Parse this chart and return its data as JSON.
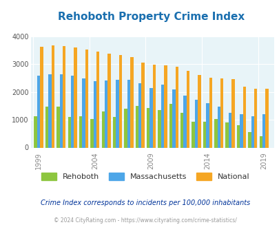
{
  "title": "Rehoboth Property Crime Index",
  "years": [
    1999,
    2000,
    2001,
    2002,
    2003,
    2004,
    2005,
    2006,
    2007,
    2008,
    2009,
    2010,
    2011,
    2012,
    2013,
    2014,
    2015,
    2016,
    2017,
    2018,
    2019
  ],
  "rehoboth": [
    1120,
    1470,
    1460,
    1100,
    1120,
    1020,
    1290,
    1110,
    1390,
    1490,
    1420,
    1360,
    1560,
    1240,
    925,
    940,
    1020,
    900,
    800,
    550,
    420
  ],
  "massachusetts": [
    2580,
    2630,
    2630,
    2590,
    2490,
    2380,
    2420,
    2430,
    2430,
    2320,
    2140,
    2270,
    2090,
    1870,
    1710,
    1590,
    1470,
    1260,
    1200,
    1130,
    1190
  ],
  "national": [
    3620,
    3670,
    3660,
    3590,
    3520,
    3440,
    3380,
    3330,
    3260,
    3060,
    2990,
    2960,
    2910,
    2770,
    2600,
    2510,
    2490,
    2460,
    2200,
    2110,
    2110
  ],
  "rehoboth_color": "#8dc63f",
  "massachusetts_color": "#4da6e8",
  "national_color": "#f5a623",
  "plot_bg_color": "#e8f4f8",
  "ylim": [
    0,
    4000
  ],
  "yticks": [
    0,
    1000,
    2000,
    3000,
    4000
  ],
  "subtitle": "Crime Index corresponds to incidents per 100,000 inhabitants",
  "footer": "© 2024 CityRating.com - https://www.cityrating.com/crime-statistics/",
  "xlabel_ticks": [
    1999,
    2004,
    2009,
    2014,
    2019
  ],
  "bar_width": 0.27
}
